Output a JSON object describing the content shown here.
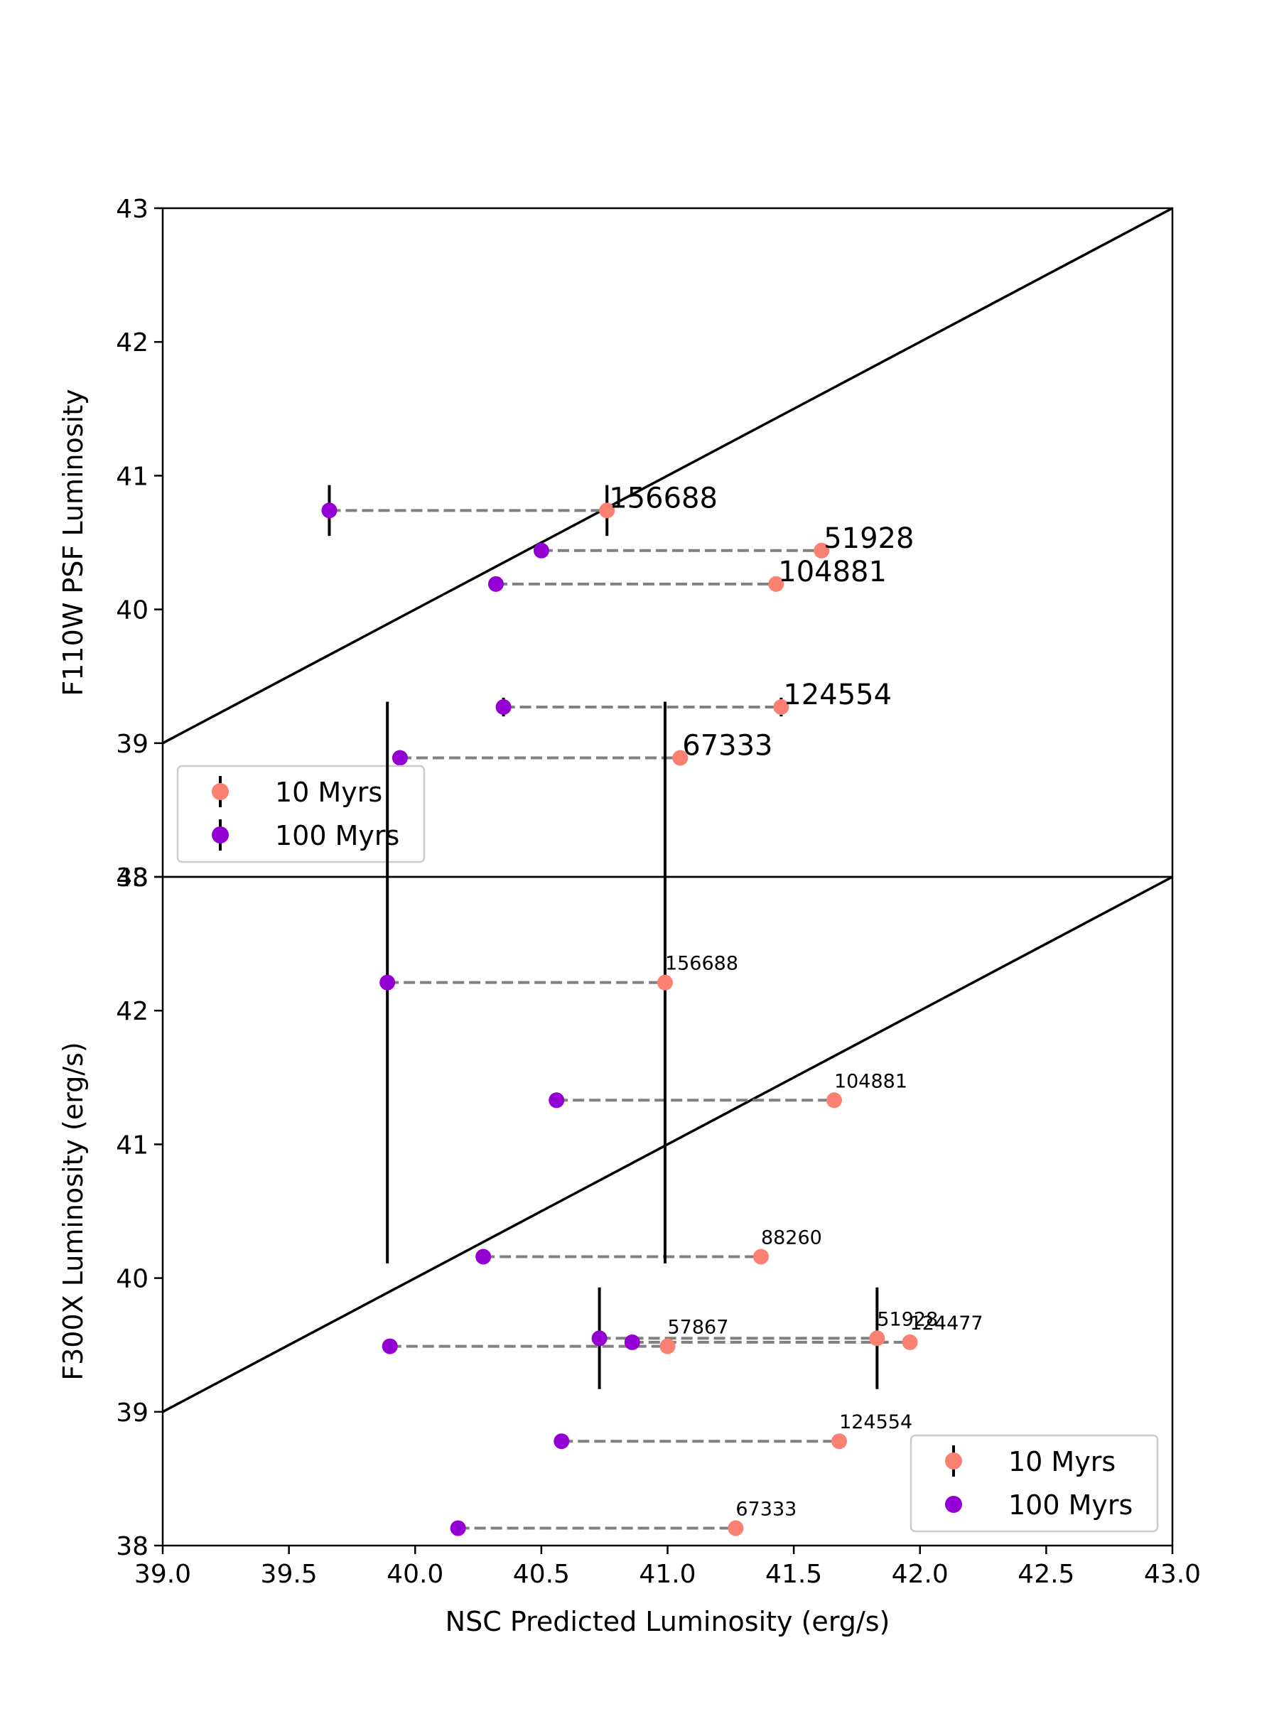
{
  "chart_data": [
    {
      "type": "scatter",
      "panel": "top",
      "ylabel": "F110W PSF Luminosity",
      "xlim": [
        39.0,
        43.0
      ],
      "ylim": [
        38,
        43
      ],
      "yticks": [
        "38",
        "39",
        "40",
        "41",
        "42",
        "43"
      ],
      "legend_position": "lower-left",
      "reference_line": "y = x",
      "series": [
        {
          "name": "10 Myrs",
          "color": "#fa8072",
          "points": [
            {
              "id": "156688",
              "x": 40.76,
              "y": 40.74,
              "yerr": 0.19
            },
            {
              "id": "51928",
              "x": 41.61,
              "y": 40.44,
              "yerr": 0
            },
            {
              "id": "104881",
              "x": 41.43,
              "y": 40.19,
              "yerr": 0
            },
            {
              "id": "124554",
              "x": 41.45,
              "y": 39.27,
              "yerr": 0.07
            },
            {
              "id": "67333",
              "x": 41.05,
              "y": 38.89,
              "yerr": 0
            }
          ]
        },
        {
          "name": "100 Myrs",
          "color": "#9400d3",
          "points": [
            {
              "id": "156688",
              "x": 39.66,
              "y": 40.74,
              "yerr": 0.19
            },
            {
              "id": "51928",
              "x": 40.5,
              "y": 40.44,
              "yerr": 0
            },
            {
              "id": "104881",
              "x": 40.32,
              "y": 40.19,
              "yerr": 0
            },
            {
              "id": "124554",
              "x": 40.35,
              "y": 39.27,
              "yerr": 0.07
            },
            {
              "id": "67333",
              "x": 39.94,
              "y": 38.89,
              "yerr": 0
            }
          ]
        }
      ],
      "annotations": [
        {
          "text": "156688",
          "x": 40.76,
          "y": 40.74
        },
        {
          "text": "51928",
          "x": 41.61,
          "y": 40.44
        },
        {
          "text": "104881",
          "x": 41.43,
          "y": 40.19
        },
        {
          "text": "124554",
          "x": 41.45,
          "y": 39.27
        },
        {
          "text": "67333",
          "x": 41.05,
          "y": 38.89
        }
      ]
    },
    {
      "type": "scatter",
      "panel": "bottom",
      "xlabel": "NSC Predicted Luminosity (erg/s)",
      "ylabel": "F300X Luminosity (erg/s)",
      "xlim": [
        39.0,
        43.0
      ],
      "ylim": [
        38,
        43
      ],
      "xticks": [
        "39.0",
        "39.5",
        "40.0",
        "40.5",
        "41.0",
        "41.5",
        "42.0",
        "42.5",
        "43.0"
      ],
      "yticks": [
        "38",
        "39",
        "40",
        "41",
        "42",
        "43"
      ],
      "legend_position": "lower-right",
      "reference_line": "y = x",
      "series": [
        {
          "name": "10 Myrs",
          "color": "#fa8072",
          "points": [
            {
              "id": "156688",
              "x": 40.99,
              "y": 42.21,
              "yerr": 2.1
            },
            {
              "id": "104881",
              "x": 41.66,
              "y": 41.33,
              "yerr": 0
            },
            {
              "id": "88260",
              "x": 41.37,
              "y": 40.16,
              "yerr": 0
            },
            {
              "id": "51928",
              "x": 41.83,
              "y": 39.55,
              "yerr": 0.38
            },
            {
              "id": "124477",
              "x": 41.96,
              "y": 39.52,
              "yerr": 0
            },
            {
              "id": "57867",
              "x": 41.0,
              "y": 39.49,
              "yerr": 0
            },
            {
              "id": "124554",
              "x": 41.68,
              "y": 38.78,
              "yerr": 0
            },
            {
              "id": "67333",
              "x": 41.27,
              "y": 38.13,
              "yerr": 0
            }
          ]
        },
        {
          "name": "100 Myrs",
          "color": "#9400d3",
          "points": [
            {
              "id": "156688",
              "x": 39.89,
              "y": 42.21,
              "yerr": 2.1
            },
            {
              "id": "104881",
              "x": 40.56,
              "y": 41.33,
              "yerr": 0
            },
            {
              "id": "88260",
              "x": 40.27,
              "y": 40.16,
              "yerr": 0
            },
            {
              "id": "51928",
              "x": 40.73,
              "y": 39.55,
              "yerr": 0.38
            },
            {
              "id": "124477",
              "x": 40.86,
              "y": 39.52,
              "yerr": 0
            },
            {
              "id": "57867",
              "x": 39.9,
              "y": 39.49,
              "yerr": 0
            },
            {
              "id": "124554",
              "x": 40.58,
              "y": 38.78,
              "yerr": 0
            },
            {
              "id": "67333",
              "x": 40.17,
              "y": 38.13,
              "yerr": 0
            }
          ]
        }
      ],
      "annotations": [
        {
          "text": "156688",
          "x": 40.99,
          "y": 42.21
        },
        {
          "text": "104881",
          "x": 41.66,
          "y": 41.33
        },
        {
          "text": "88260",
          "x": 41.37,
          "y": 40.16
        },
        {
          "text": "51928",
          "x": 41.83,
          "y": 39.55
        },
        {
          "text": "124477",
          "x": 41.96,
          "y": 39.52
        },
        {
          "text": "57867",
          "x": 41.0,
          "y": 39.49
        },
        {
          "text": "124554",
          "x": 41.68,
          "y": 38.78
        },
        {
          "text": "67333",
          "x": 41.27,
          "y": 38.13
        }
      ]
    }
  ]
}
